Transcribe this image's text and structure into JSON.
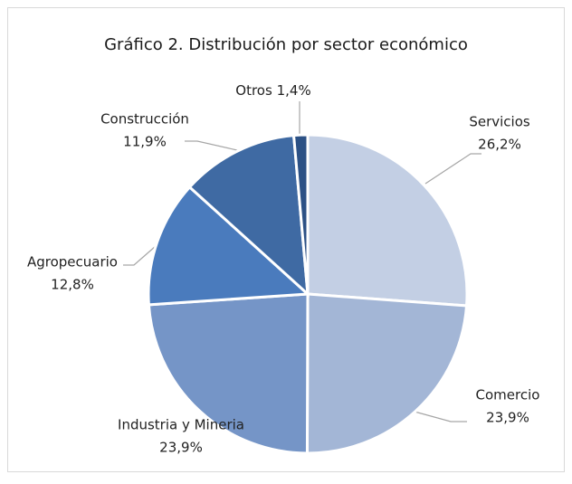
{
  "chart_data": {
    "type": "pie",
    "title": "Gráfico 2. Distribución por sector económico",
    "categories": [
      "Servicios",
      "Comercio",
      "Industria y Mineria",
      "Agropecuario",
      "Construcción",
      "Otros"
    ],
    "values": [
      26.2,
      23.9,
      23.9,
      12.8,
      11.9,
      1.4
    ],
    "value_labels": [
      "26,2%",
      "23,9%",
      "23,9%",
      "12,8%",
      "11,9%",
      "1,4%"
    ],
    "colors": [
      "#c3cfe4",
      "#a3b6d6",
      "#7595c7",
      "#4a7bbd",
      "#3f6aa3",
      "#2c5185"
    ]
  }
}
